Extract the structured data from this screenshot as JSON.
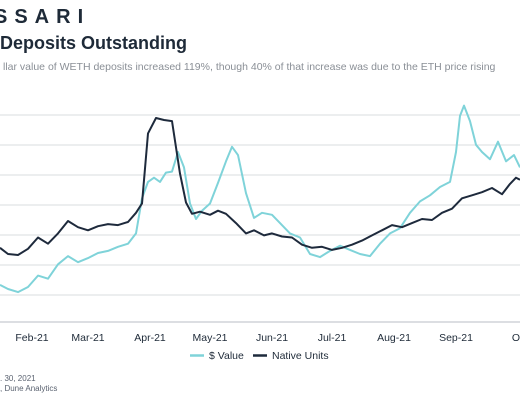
{
  "header": {
    "brand": "SSARI",
    "title": "Deposits Outstanding",
    "subtitle": "llar value of WETH deposits increased 119%, though 40% of that increase was due to the ETH price rising"
  },
  "footer": {
    "line1": ". 30, 2021",
    "line2": ", Dune Analytics"
  },
  "colors": {
    "value_series": "#7fd3d9",
    "native_series": "#1e2a3c",
    "grid": "#d9dcdf",
    "text": "#1e2a38"
  },
  "chart_data": {
    "type": "line",
    "title": "Deposits Outstanding",
    "xlabel": "",
    "ylabel": "",
    "y_axis_labels_visible": false,
    "grid": true,
    "legend_position": "bottom",
    "x_range": [
      "2021-01-16",
      "2021-10-03"
    ],
    "x_tick_labels": [
      "Feb-21",
      "Mar-21",
      "Apr-21",
      "May-21",
      "Jun-21",
      "Jul-21",
      "Aug-21",
      "Sep-21",
      "O"
    ],
    "x_tick_dates": [
      "2021-02-01",
      "2021-03-01",
      "2021-04-01",
      "2021-05-01",
      "2021-06-01",
      "2021-07-01",
      "2021-08-01",
      "2021-09-01",
      "2021-10-01"
    ],
    "series": [
      {
        "name": "$ Value",
        "color": "#7fd3d9",
        "points": [
          [
            "2021-01-16",
            3.6
          ],
          [
            "2021-01-20",
            3.2
          ],
          [
            "2021-01-25",
            2.9
          ],
          [
            "2021-01-30",
            3.4
          ],
          [
            "2021-02-04",
            4.5
          ],
          [
            "2021-02-09",
            4.2
          ],
          [
            "2021-02-14",
            5.6
          ],
          [
            "2021-02-19",
            6.4
          ],
          [
            "2021-02-24",
            5.8
          ],
          [
            "2021-03-01",
            6.2
          ],
          [
            "2021-03-06",
            6.7
          ],
          [
            "2021-03-11",
            6.9
          ],
          [
            "2021-03-16",
            7.3
          ],
          [
            "2021-03-21",
            7.6
          ],
          [
            "2021-03-25",
            8.6
          ],
          [
            "2021-03-28",
            12.0
          ],
          [
            "2021-03-31",
            13.6
          ],
          [
            "2021-04-03",
            14.0
          ],
          [
            "2021-04-06",
            13.6
          ],
          [
            "2021-04-09",
            14.5
          ],
          [
            "2021-04-12",
            14.6
          ],
          [
            "2021-04-15",
            16.5
          ],
          [
            "2021-04-18",
            15.0
          ],
          [
            "2021-04-21",
            11.5
          ],
          [
            "2021-04-24",
            10.0
          ],
          [
            "2021-04-27",
            10.8
          ],
          [
            "2021-05-01",
            11.5
          ],
          [
            "2021-05-05",
            13.5
          ],
          [
            "2021-05-09",
            15.6
          ],
          [
            "2021-05-12",
            17.0
          ],
          [
            "2021-05-15",
            16.2
          ],
          [
            "2021-05-19",
            12.5
          ],
          [
            "2021-05-23",
            10.1
          ],
          [
            "2021-05-27",
            10.6
          ],
          [
            "2021-06-01",
            10.4
          ],
          [
            "2021-06-05",
            9.6
          ],
          [
            "2021-06-10",
            8.6
          ],
          [
            "2021-06-15",
            8.2
          ],
          [
            "2021-06-20",
            6.6
          ],
          [
            "2021-06-25",
            6.3
          ],
          [
            "2021-06-30",
            6.9
          ],
          [
            "2021-07-05",
            7.4
          ],
          [
            "2021-07-10",
            7.0
          ],
          [
            "2021-07-15",
            6.6
          ],
          [
            "2021-07-20",
            6.4
          ],
          [
            "2021-07-25",
            7.6
          ],
          [
            "2021-07-30",
            8.6
          ],
          [
            "2021-08-04",
            9.1
          ],
          [
            "2021-08-09",
            10.6
          ],
          [
            "2021-08-14",
            11.7
          ],
          [
            "2021-08-19",
            12.3
          ],
          [
            "2021-08-24",
            13.1
          ],
          [
            "2021-08-29",
            13.6
          ],
          [
            "2021-09-01",
            16.5
          ],
          [
            "2021-09-03",
            20.0
          ],
          [
            "2021-09-05",
            21.0
          ],
          [
            "2021-09-08",
            19.5
          ],
          [
            "2021-09-11",
            17.2
          ],
          [
            "2021-09-14",
            16.5
          ],
          [
            "2021-09-18",
            15.8
          ],
          [
            "2021-09-22",
            17.5
          ],
          [
            "2021-09-26",
            15.6
          ],
          [
            "2021-09-30",
            16.2
          ],
          [
            "2021-10-03",
            15.0
          ]
        ]
      },
      {
        "name": "Native Units",
        "color": "#1e2a3c",
        "points": [
          [
            "2021-01-16",
            7.2
          ],
          [
            "2021-01-20",
            6.6
          ],
          [
            "2021-01-25",
            6.5
          ],
          [
            "2021-01-30",
            7.1
          ],
          [
            "2021-02-04",
            8.2
          ],
          [
            "2021-02-09",
            7.6
          ],
          [
            "2021-02-14",
            8.6
          ],
          [
            "2021-02-19",
            9.8
          ],
          [
            "2021-02-24",
            9.2
          ],
          [
            "2021-03-01",
            8.9
          ],
          [
            "2021-03-06",
            9.3
          ],
          [
            "2021-03-11",
            9.5
          ],
          [
            "2021-03-16",
            9.4
          ],
          [
            "2021-03-21",
            9.7
          ],
          [
            "2021-03-25",
            10.6
          ],
          [
            "2021-03-28",
            11.5
          ],
          [
            "2021-03-31",
            18.3
          ],
          [
            "2021-04-04",
            19.8
          ],
          [
            "2021-04-08",
            19.6
          ],
          [
            "2021-04-12",
            19.5
          ],
          [
            "2021-04-16",
            14.4
          ],
          [
            "2021-04-19",
            11.6
          ],
          [
            "2021-04-22",
            10.5
          ],
          [
            "2021-04-26",
            10.7
          ],
          [
            "2021-05-01",
            10.4
          ],
          [
            "2021-05-05",
            10.8
          ],
          [
            "2021-05-09",
            10.5
          ],
          [
            "2021-05-14",
            9.6
          ],
          [
            "2021-05-19",
            8.6
          ],
          [
            "2021-05-23",
            8.9
          ],
          [
            "2021-05-28",
            8.4
          ],
          [
            "2021-06-01",
            8.6
          ],
          [
            "2021-06-06",
            8.3
          ],
          [
            "2021-06-11",
            8.2
          ],
          [
            "2021-06-16",
            7.5
          ],
          [
            "2021-06-21",
            7.2
          ],
          [
            "2021-06-26",
            7.3
          ],
          [
            "2021-07-01",
            7.0
          ],
          [
            "2021-07-06",
            7.2
          ],
          [
            "2021-07-11",
            7.5
          ],
          [
            "2021-07-16",
            7.9
          ],
          [
            "2021-07-21",
            8.4
          ],
          [
            "2021-07-26",
            8.9
          ],
          [
            "2021-07-31",
            9.4
          ],
          [
            "2021-08-05",
            9.2
          ],
          [
            "2021-08-10",
            9.6
          ],
          [
            "2021-08-15",
            10.0
          ],
          [
            "2021-08-20",
            9.9
          ],
          [
            "2021-08-25",
            10.6
          ],
          [
            "2021-08-30",
            11.0
          ],
          [
            "2021-09-04",
            12.0
          ],
          [
            "2021-09-09",
            12.3
          ],
          [
            "2021-09-14",
            12.6
          ],
          [
            "2021-09-19",
            13.0
          ],
          [
            "2021-09-24",
            12.4
          ],
          [
            "2021-09-28",
            13.4
          ],
          [
            "2021-10-01",
            14.0
          ],
          [
            "2021-10-03",
            13.8
          ]
        ]
      }
    ]
  }
}
